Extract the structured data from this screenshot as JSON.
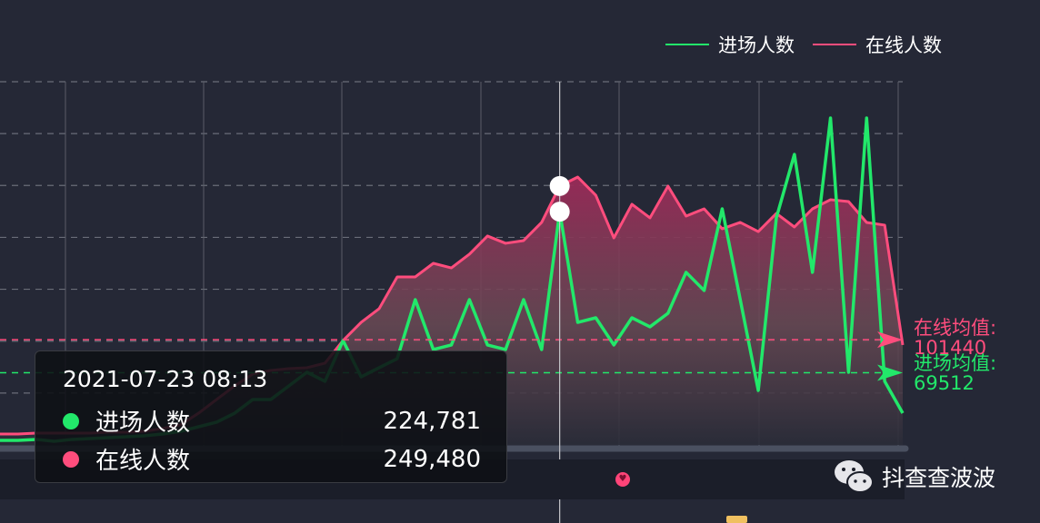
{
  "chart_data": {
    "type": "line",
    "title": "",
    "xlabel": "",
    "ylabel": "",
    "ylim": [
      0,
      350000
    ],
    "grid": true,
    "legend_position": "top-right",
    "series": [
      {
        "name": "进场人数",
        "color": "#22e86a",
        "values": [
          4400,
          4400,
          5300,
          3500,
          5300,
          6100,
          7000,
          7900,
          8800,
          10500,
          13100,
          17500,
          21900,
          30600,
          43800,
          43800,
          56900,
          70000,
          61300,
          100600,
          65600,
          74400,
          83100,
          140000,
          91900,
          96300,
          140000,
          96300,
          91900,
          140000,
          91900,
          224781,
          118100,
          122500,
          96300,
          122500,
          113800,
          126900,
          166300,
          148800,
          227500,
          140000,
          52500,
          218800,
          280000,
          166300,
          315000,
          70000,
          315000,
          61300,
          30600
        ]
      },
      {
        "name": "在线人数",
        "color": "#ff4d7d",
        "values": [
          10500,
          10500,
          11400,
          11400,
          11400,
          11400,
          12300,
          12300,
          13100,
          15800,
          19300,
          30600,
          43800,
          56900,
          68300,
          71800,
          73500,
          74400,
          78800,
          100600,
          118100,
          131300,
          161900,
          161900,
          175000,
          170600,
          183800,
          201300,
          194300,
          196900,
          214400,
          249480,
          258100,
          240600,
          199500,
          231900,
          218800,
          249400,
          220500,
          227500,
          208300,
          214400,
          205600,
          223100,
          210000,
          227500,
          236300,
          234500,
          214400,
          211800,
          96300
        ]
      }
    ],
    "mark_lines": [
      {
        "label": "在线均值:",
        "value": 101440,
        "value_text": "101440",
        "color": "#ff4d7d"
      },
      {
        "label": "进场均值:",
        "value": 69512,
        "value_text": "69512",
        "color": "#22e86a"
      }
    ],
    "crosshair_index": 31
  },
  "tooltip": {
    "title": "2021-07-23 08:13",
    "rows": [
      {
        "name": "进场人数",
        "value": "224,781",
        "color": "#22e86a"
      },
      {
        "name": "在线人数",
        "value": "249,480",
        "color": "#ff4d7d"
      }
    ]
  },
  "watermark": {
    "text": "抖查查波波",
    "icon": "wechat-icon"
  }
}
